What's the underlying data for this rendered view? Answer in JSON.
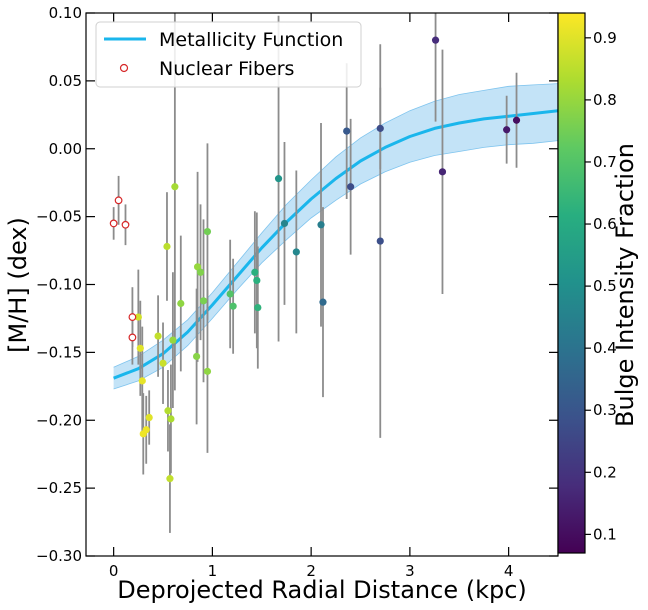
{
  "chart_data": {
    "type": "scatter",
    "xlabel": "Deprojected Radial Distance (kpc)",
    "ylabel": "[M/H] (dex)",
    "xlim": [
      -0.28,
      4.5
    ],
    "ylim": [
      -0.3,
      0.1
    ],
    "x_ticks": [
      0,
      1,
      2,
      3,
      4
    ],
    "x_tick_labels": [
      "0",
      "1",
      "2",
      "3",
      "4"
    ],
    "y_ticks": [
      -0.3,
      -0.25,
      -0.2,
      -0.15,
      -0.1,
      -0.05,
      0.0,
      0.05,
      0.1
    ],
    "y_tick_labels": [
      "−0.30",
      "−0.25",
      "−0.20",
      "−0.15",
      "−0.10",
      "−0.05",
      "0.00",
      "0.05",
      "0.10"
    ],
    "colorbar": {
      "label": "Bulge Intensity Fraction",
      "range": [
        0.07,
        0.94
      ],
      "ticks": [
        0.1,
        0.2,
        0.3,
        0.4,
        0.5,
        0.6,
        0.7,
        0.8,
        0.9
      ],
      "tick_labels": [
        "0.1",
        "0.2",
        "0.3",
        "0.4",
        "0.5",
        "0.6",
        "0.7",
        "0.8",
        "0.9"
      ],
      "colormap": "viridis"
    },
    "legend": {
      "location": "upper-left",
      "entries": [
        "Metallicity Function",
        "Nuclear Fibers"
      ]
    },
    "colors": {
      "curve": "#1ab6ec",
      "band": "#b8def6",
      "band_edge": "#7fc4ee",
      "errorbar": "#8c8c8c",
      "nuclear_edge": "#d62728"
    },
    "metallicity_function": {
      "name": "Metallicity Function",
      "x": [
        0.0,
        0.25,
        0.5,
        0.75,
        1.0,
        1.25,
        1.5,
        1.75,
        2.0,
        2.25,
        2.5,
        2.75,
        3.0,
        3.25,
        3.5,
        3.75,
        4.0,
        4.25,
        4.5
      ],
      "y": [
        -0.169,
        -0.162,
        -0.151,
        -0.135,
        -0.115,
        -0.094,
        -0.073,
        -0.054,
        -0.037,
        -0.022,
        -0.009,
        0.001,
        0.009,
        0.015,
        0.019,
        0.022,
        0.024,
        0.026,
        0.028
      ],
      "band_upper": [
        -0.161,
        -0.153,
        -0.141,
        -0.126,
        -0.106,
        -0.084,
        -0.062,
        -0.041,
        -0.023,
        -0.006,
        0.008,
        0.019,
        0.028,
        0.035,
        0.04,
        0.043,
        0.046,
        0.047,
        0.048
      ],
      "band_lower": [
        -0.177,
        -0.171,
        -0.161,
        -0.145,
        -0.125,
        -0.104,
        -0.084,
        -0.067,
        -0.051,
        -0.038,
        -0.026,
        -0.017,
        -0.01,
        -0.005,
        -0.002,
        0.001,
        0.003,
        0.004,
        0.006
      ]
    },
    "nuclear_fibers": {
      "name": "Nuclear Fibers",
      "points": [
        {
          "x": 0.0,
          "y": -0.055,
          "err": 0.012
        },
        {
          "x": 0.05,
          "y": -0.038,
          "err": 0.018
        },
        {
          "x": 0.12,
          "y": -0.056,
          "err": 0.015
        },
        {
          "x": 0.19,
          "y": -0.124,
          "err": 0.022
        },
        {
          "x": 0.19,
          "y": -0.139,
          "err": 0.02
        }
      ]
    },
    "fibers": [
      {
        "x": 0.25,
        "y": -0.124,
        "err": 0.035,
        "frac": 0.88
      },
      {
        "x": 0.27,
        "y": -0.147,
        "err": 0.035,
        "frac": 0.9
      },
      {
        "x": 0.29,
        "y": -0.171,
        "err": 0.04,
        "frac": 0.91
      },
      {
        "x": 0.3,
        "y": -0.21,
        "err": 0.03,
        "frac": 0.92
      },
      {
        "x": 0.33,
        "y": -0.207,
        "err": 0.025,
        "frac": 0.92
      },
      {
        "x": 0.36,
        "y": -0.198,
        "err": 0.02,
        "frac": 0.9
      },
      {
        "x": 0.45,
        "y": -0.138,
        "err": 0.03,
        "frac": 0.86
      },
      {
        "x": 0.5,
        "y": -0.158,
        "err": 0.03,
        "frac": 0.87
      },
      {
        "x": 0.54,
        "y": -0.072,
        "err": 0.04,
        "frac": 0.85
      },
      {
        "x": 0.55,
        "y": -0.193,
        "err": 0.03,
        "frac": 0.84
      },
      {
        "x": 0.57,
        "y": -0.243,
        "err": 0.04,
        "frac": 0.86
      },
      {
        "x": 0.58,
        "y": -0.199,
        "err": 0.04,
        "frac": 0.83
      },
      {
        "x": 0.6,
        "y": -0.141,
        "err": 0.05,
        "frac": 0.8
      },
      {
        "x": 0.62,
        "y": -0.028,
        "err": 0.15,
        "frac": 0.82
      },
      {
        "x": 0.68,
        "y": -0.114,
        "err": 0.05,
        "frac": 0.79
      },
      {
        "x": 0.84,
        "y": -0.153,
        "err": 0.05,
        "frac": 0.78
      },
      {
        "x": 0.85,
        "y": -0.087,
        "err": 0.07,
        "frac": 0.8
      },
      {
        "x": 0.88,
        "y": -0.091,
        "err": 0.05,
        "frac": 0.77
      },
      {
        "x": 0.91,
        "y": -0.112,
        "err": 0.06,
        "frac": 0.76
      },
      {
        "x": 0.95,
        "y": -0.164,
        "err": 0.06,
        "frac": 0.79
      },
      {
        "x": 0.95,
        "y": -0.061,
        "err": 0.065,
        "frac": 0.75
      },
      {
        "x": 1.18,
        "y": -0.107,
        "err": 0.04,
        "frac": 0.7
      },
      {
        "x": 1.21,
        "y": -0.116,
        "err": 0.035,
        "frac": 0.69
      },
      {
        "x": 1.43,
        "y": -0.091,
        "err": 0.045,
        "frac": 0.62
      },
      {
        "x": 1.45,
        "y": -0.097,
        "err": 0.05,
        "frac": 0.62
      },
      {
        "x": 1.46,
        "y": -0.117,
        "err": 0.045,
        "frac": 0.63
      },
      {
        "x": 1.67,
        "y": -0.022,
        "err": 0.12,
        "frac": 0.52
      },
      {
        "x": 1.73,
        "y": -0.055,
        "err": 0.06,
        "frac": 0.46
      },
      {
        "x": 1.85,
        "y": -0.076,
        "err": 0.06,
        "frac": 0.47
      },
      {
        "x": 2.1,
        "y": -0.056,
        "err": 0.075,
        "frac": 0.44
      },
      {
        "x": 2.12,
        "y": -0.113,
        "err": 0.07,
        "frac": 0.37
      },
      {
        "x": 2.36,
        "y": 0.013,
        "err": 0.05,
        "frac": 0.31
      },
      {
        "x": 2.4,
        "y": -0.028,
        "err": 0.05,
        "frac": 0.27
      },
      {
        "x": 2.7,
        "y": 0.015,
        "err": 0.03,
        "frac": 0.27
      },
      {
        "x": 2.7,
        "y": -0.068,
        "err": 0.145,
        "frac": 0.28
      },
      {
        "x": 3.26,
        "y": 0.08,
        "err": 0.06,
        "frac": 0.18
      },
      {
        "x": 3.33,
        "y": -0.017,
        "err": 0.09,
        "frac": 0.16
      },
      {
        "x": 3.98,
        "y": 0.014,
        "err": 0.025,
        "frac": 0.13
      },
      {
        "x": 4.08,
        "y": 0.021,
        "err": 0.035,
        "frac": 0.1
      }
    ]
  }
}
